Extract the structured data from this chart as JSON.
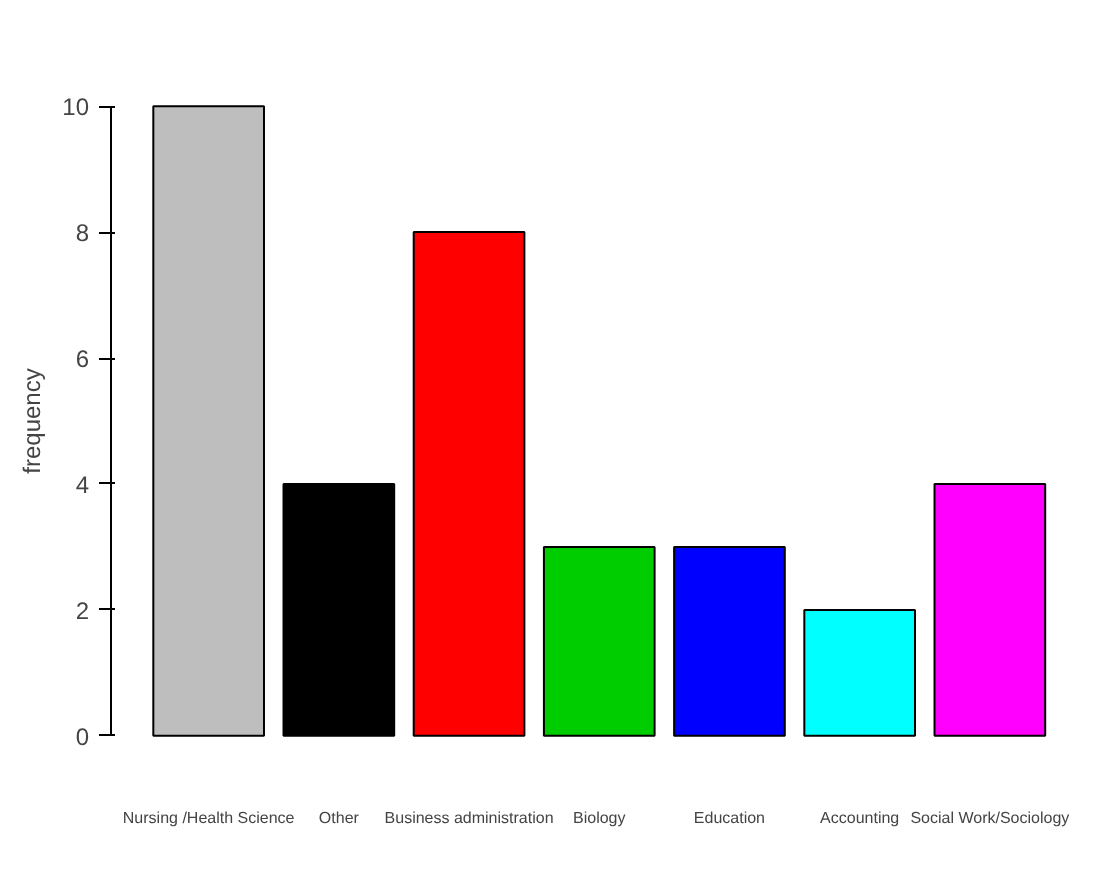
{
  "chart_data": {
    "type": "bar",
    "ylabel": "frequency",
    "categories": [
      "Nursing /Health Science",
      "Other",
      "Business administration",
      "Biology",
      "Education",
      "Accounting",
      "Social Work/Sociology"
    ],
    "values": [
      10,
      4,
      8,
      3,
      3,
      2,
      4
    ],
    "colors": [
      "#bebebe",
      "#000000",
      "#ff0000",
      "#00cd00",
      "#0000ff",
      "#00ffff",
      "#ff00ff"
    ],
    "ylim": [
      0,
      10
    ],
    "yticks": [
      0,
      2,
      4,
      6,
      8,
      10
    ]
  }
}
